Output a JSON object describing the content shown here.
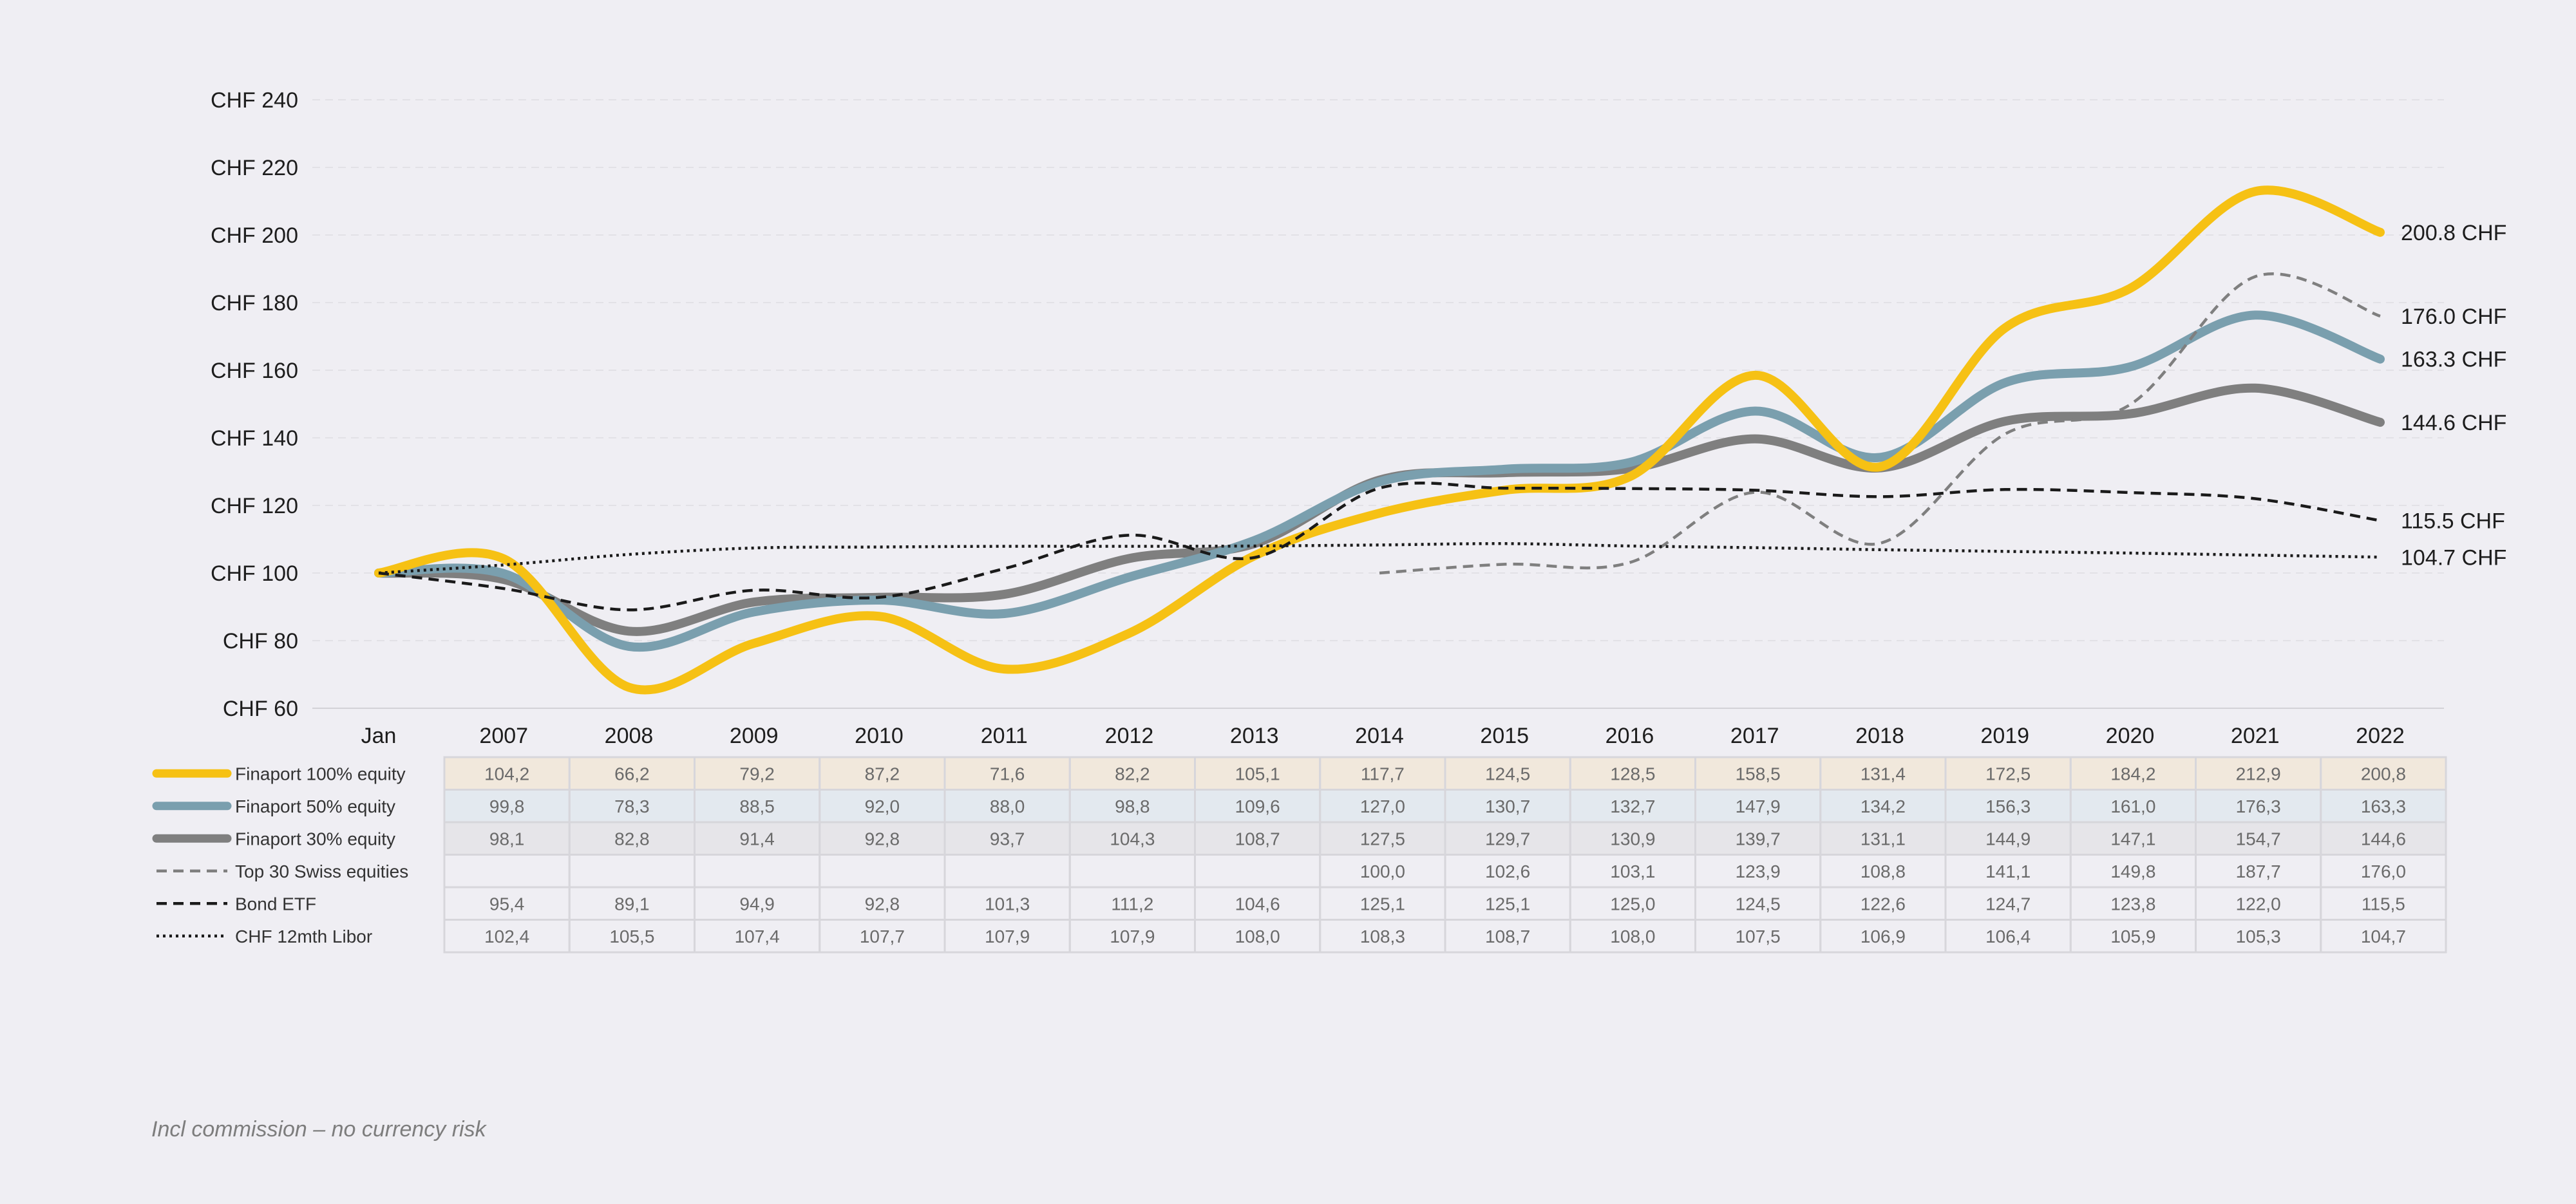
{
  "chart_data": {
    "type": "line",
    "categories": [
      "Jan",
      "2007",
      "2008",
      "2009",
      "2010",
      "2011",
      "2012",
      "2013",
      "2014",
      "2015",
      "2016",
      "2017",
      "2018",
      "2019",
      "2020",
      "2021",
      "2022"
    ],
    "y_tick_labels": [
      "CHF  60",
      "CHF  80",
      "CHF  100",
      "CHF  120",
      "CHF  140",
      "CHF  160",
      "CHF  180",
      "CHF  200",
      "CHF  220",
      "CHF  240"
    ],
    "y_ticks": [
      60,
      80,
      100,
      120,
      140,
      160,
      180,
      200,
      220,
      240
    ],
    "ylim": [
      60,
      240
    ],
    "grid": true,
    "legend_placement": "left of data table",
    "series": [
      {
        "name": "Finaport 100% equity",
        "color": "#f6c114",
        "style": "solid-thick",
        "row_tint": "#f1e8dc",
        "values": [
          100,
          104.2,
          66.2,
          79.2,
          87.2,
          71.6,
          82.2,
          105.1,
          117.7,
          124.5,
          128.5,
          158.5,
          131.4,
          172.5,
          184.2,
          212.9,
          200.8
        ],
        "table_values": [
          "104,2",
          "66,2",
          "79,2",
          "87,2",
          "71,6",
          "82,2",
          "105,1",
          "117,7",
          "124,5",
          "128,5",
          "158,5",
          "131,4",
          "172,5",
          "184,2",
          "212,9",
          "200,8"
        ],
        "end_label": "200.8 CHF"
      },
      {
        "name": "Finaport 50% equity",
        "color": "#7a9fae",
        "style": "solid-thick",
        "row_tint": "#e3e9ef",
        "values": [
          100,
          99.8,
          78.3,
          88.5,
          92.0,
          88.0,
          98.8,
          109.6,
          127.0,
          130.7,
          132.7,
          147.9,
          134.2,
          156.3,
          161.0,
          176.3,
          163.3
        ],
        "table_values": [
          "99,8",
          "78,3",
          "88,5",
          "92,0",
          "88,0",
          "98,8",
          "109,6",
          "127,0",
          "130,7",
          "132,7",
          "147,9",
          "134,2",
          "156,3",
          "161,0",
          "176,3",
          "163,3"
        ],
        "end_label": "163.3 CHF"
      },
      {
        "name": "Finaport 30% equity",
        "color": "#7f7f7f",
        "style": "solid-thick",
        "row_tint": "#e6e5e9",
        "values": [
          100,
          98.1,
          82.8,
          91.4,
          92.8,
          93.7,
          104.3,
          108.7,
          127.5,
          129.7,
          130.9,
          139.7,
          131.1,
          144.9,
          147.1,
          154.7,
          144.6
        ],
        "table_values": [
          "98,1",
          "82,8",
          "91,4",
          "92,8",
          "93,7",
          "104,3",
          "108,7",
          "127,5",
          "129,7",
          "130,9",
          "139,7",
          "131,1",
          "144,9",
          "147,1",
          "154,7",
          "144,6"
        ],
        "end_label": "144.6 CHF"
      },
      {
        "name": "Top 30 Swiss equities",
        "color": "#7f7f7f",
        "style": "dashed",
        "row_tint": "#efeef3",
        "values": [
          null,
          null,
          null,
          null,
          null,
          null,
          null,
          null,
          100.0,
          102.6,
          103.1,
          123.9,
          108.8,
          141.1,
          149.8,
          187.7,
          176.0
        ],
        "table_values": [
          "",
          "",
          "",
          "",
          "",
          "",
          "",
          "100,0",
          "102,6",
          "103,1",
          "123,9",
          "108,8",
          "141,1",
          "149,8",
          "187,7",
          "176,0"
        ],
        "end_label": "176.0 CHF"
      },
      {
        "name": "Bond ETF",
        "color": "#1a1a1a",
        "style": "dashed",
        "row_tint": "#efeef3",
        "values": [
          100,
          95.4,
          89.1,
          94.9,
          92.8,
          101.3,
          111.2,
          104.6,
          125.1,
          125.1,
          125.0,
          124.5,
          122.6,
          124.7,
          123.8,
          122.0,
          115.5
        ],
        "table_values": [
          "95,4",
          "89,1",
          "94,9",
          "92,8",
          "101,3",
          "111,2",
          "104,6",
          "125,1",
          "125,1",
          "125,0",
          "124,5",
          "122,6",
          "124,7",
          "123,8",
          "122,0",
          "115,5"
        ],
        "end_label": "115.5 CHF"
      },
      {
        "name": "CHF 12mth Libor",
        "color": "#1a1a1a",
        "style": "dotted",
        "row_tint": "#efeef3",
        "values": [
          100,
          102.4,
          105.5,
          107.4,
          107.7,
          107.9,
          107.9,
          108.0,
          108.3,
          108.7,
          108.0,
          107.5,
          106.9,
          106.4,
          105.9,
          105.3,
          104.7
        ],
        "table_values": [
          "102,4",
          "105,5",
          "107,4",
          "107,7",
          "107,9",
          "107,9",
          "108,0",
          "108,3",
          "108,7",
          "108,0",
          "107,5",
          "106,9",
          "106,4",
          "105,9",
          "105,3",
          "104,7"
        ],
        "end_label": "104.7 CHF"
      }
    ]
  },
  "footnote": "Incl commission – no currency risk"
}
